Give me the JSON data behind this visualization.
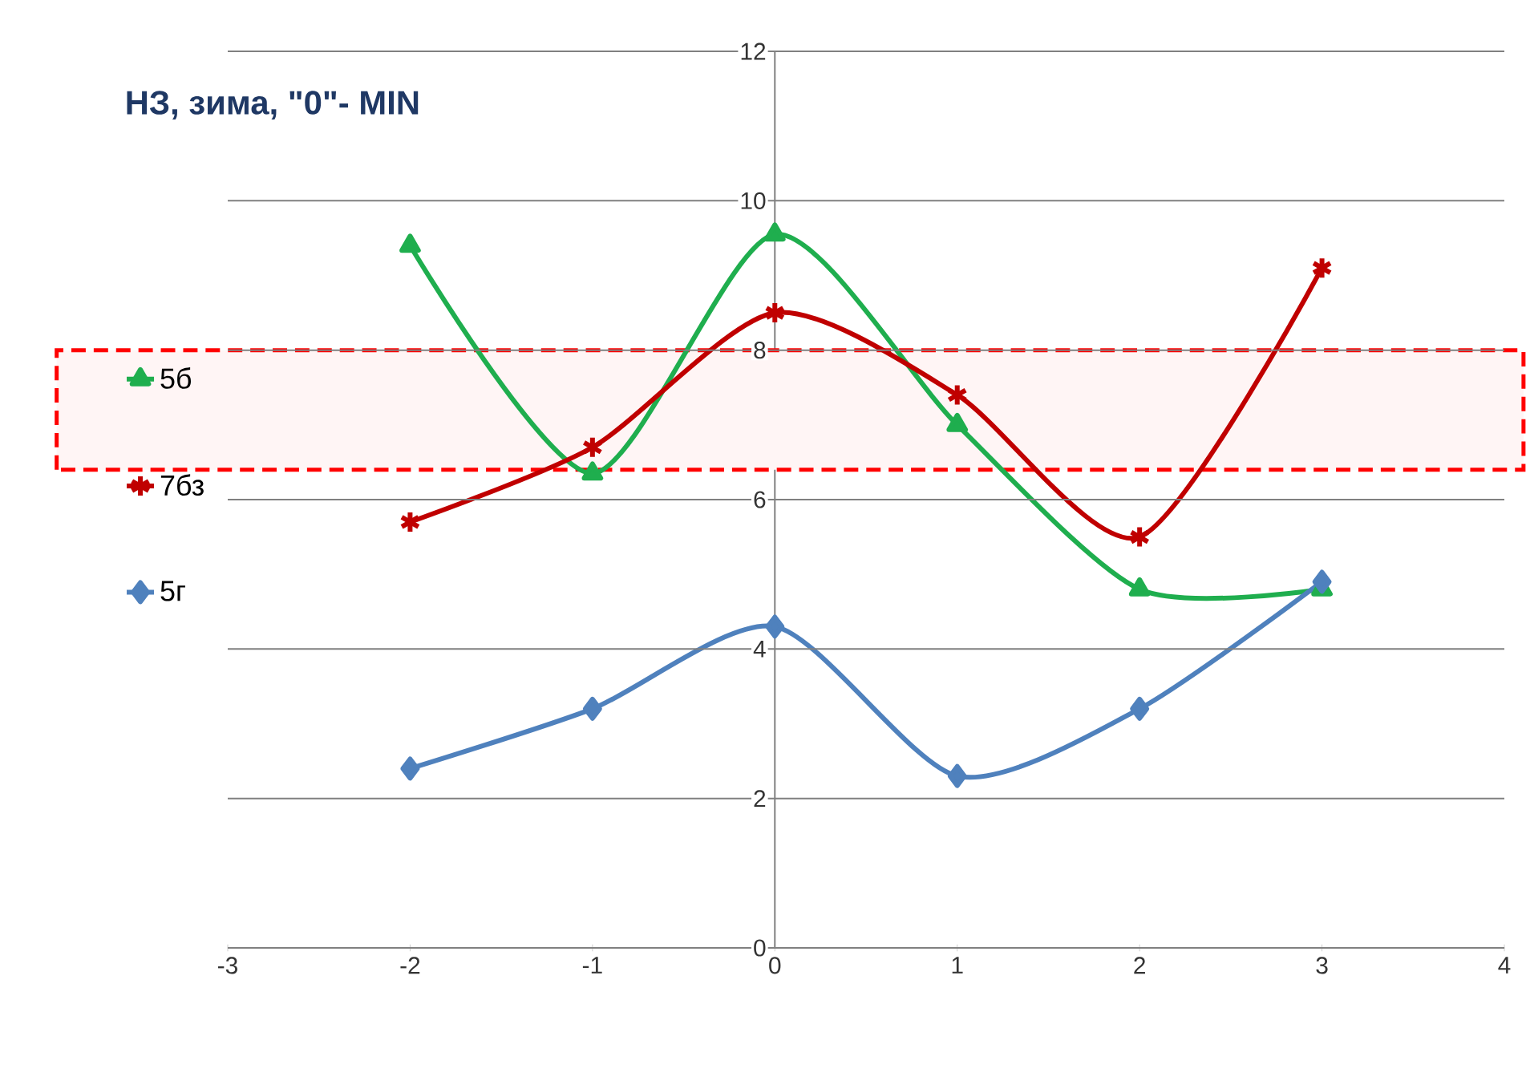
{
  "chart_data": {
    "type": "line",
    "title": "НЗ, зима, \"0\"- MIN",
    "x": [
      -2,
      -1,
      0,
      1,
      2,
      3
    ],
    "series": [
      {
        "name": "5б",
        "color": "#1fae4e",
        "marker": "triangle",
        "values": [
          9.4,
          6.35,
          9.55,
          7.0,
          4.8,
          4.8
        ]
      },
      {
        "name": "7бз",
        "color": "#c00000",
        "marker": "cross",
        "values": [
          5.7,
          6.7,
          8.5,
          7.4,
          5.5,
          9.1
        ]
      },
      {
        "name": "5г",
        "color": "#4f81bd",
        "marker": "diamond",
        "values": [
          2.4,
          3.2,
          4.3,
          2.3,
          3.2,
          4.9
        ]
      }
    ],
    "xlim": [
      -3,
      4
    ],
    "xticks": [
      -3,
      -2,
      -1,
      0,
      1,
      2,
      3,
      4
    ],
    "ylim": [
      0,
      12
    ],
    "yticks": [
      0,
      2,
      4,
      6,
      8,
      10,
      12
    ],
    "grid": "y",
    "legend": "left",
    "line_style": "solid",
    "bands": [
      {
        "axis": "y",
        "from": 6.4,
        "to": 8,
        "color": "#ff0000"
      }
    ]
  }
}
